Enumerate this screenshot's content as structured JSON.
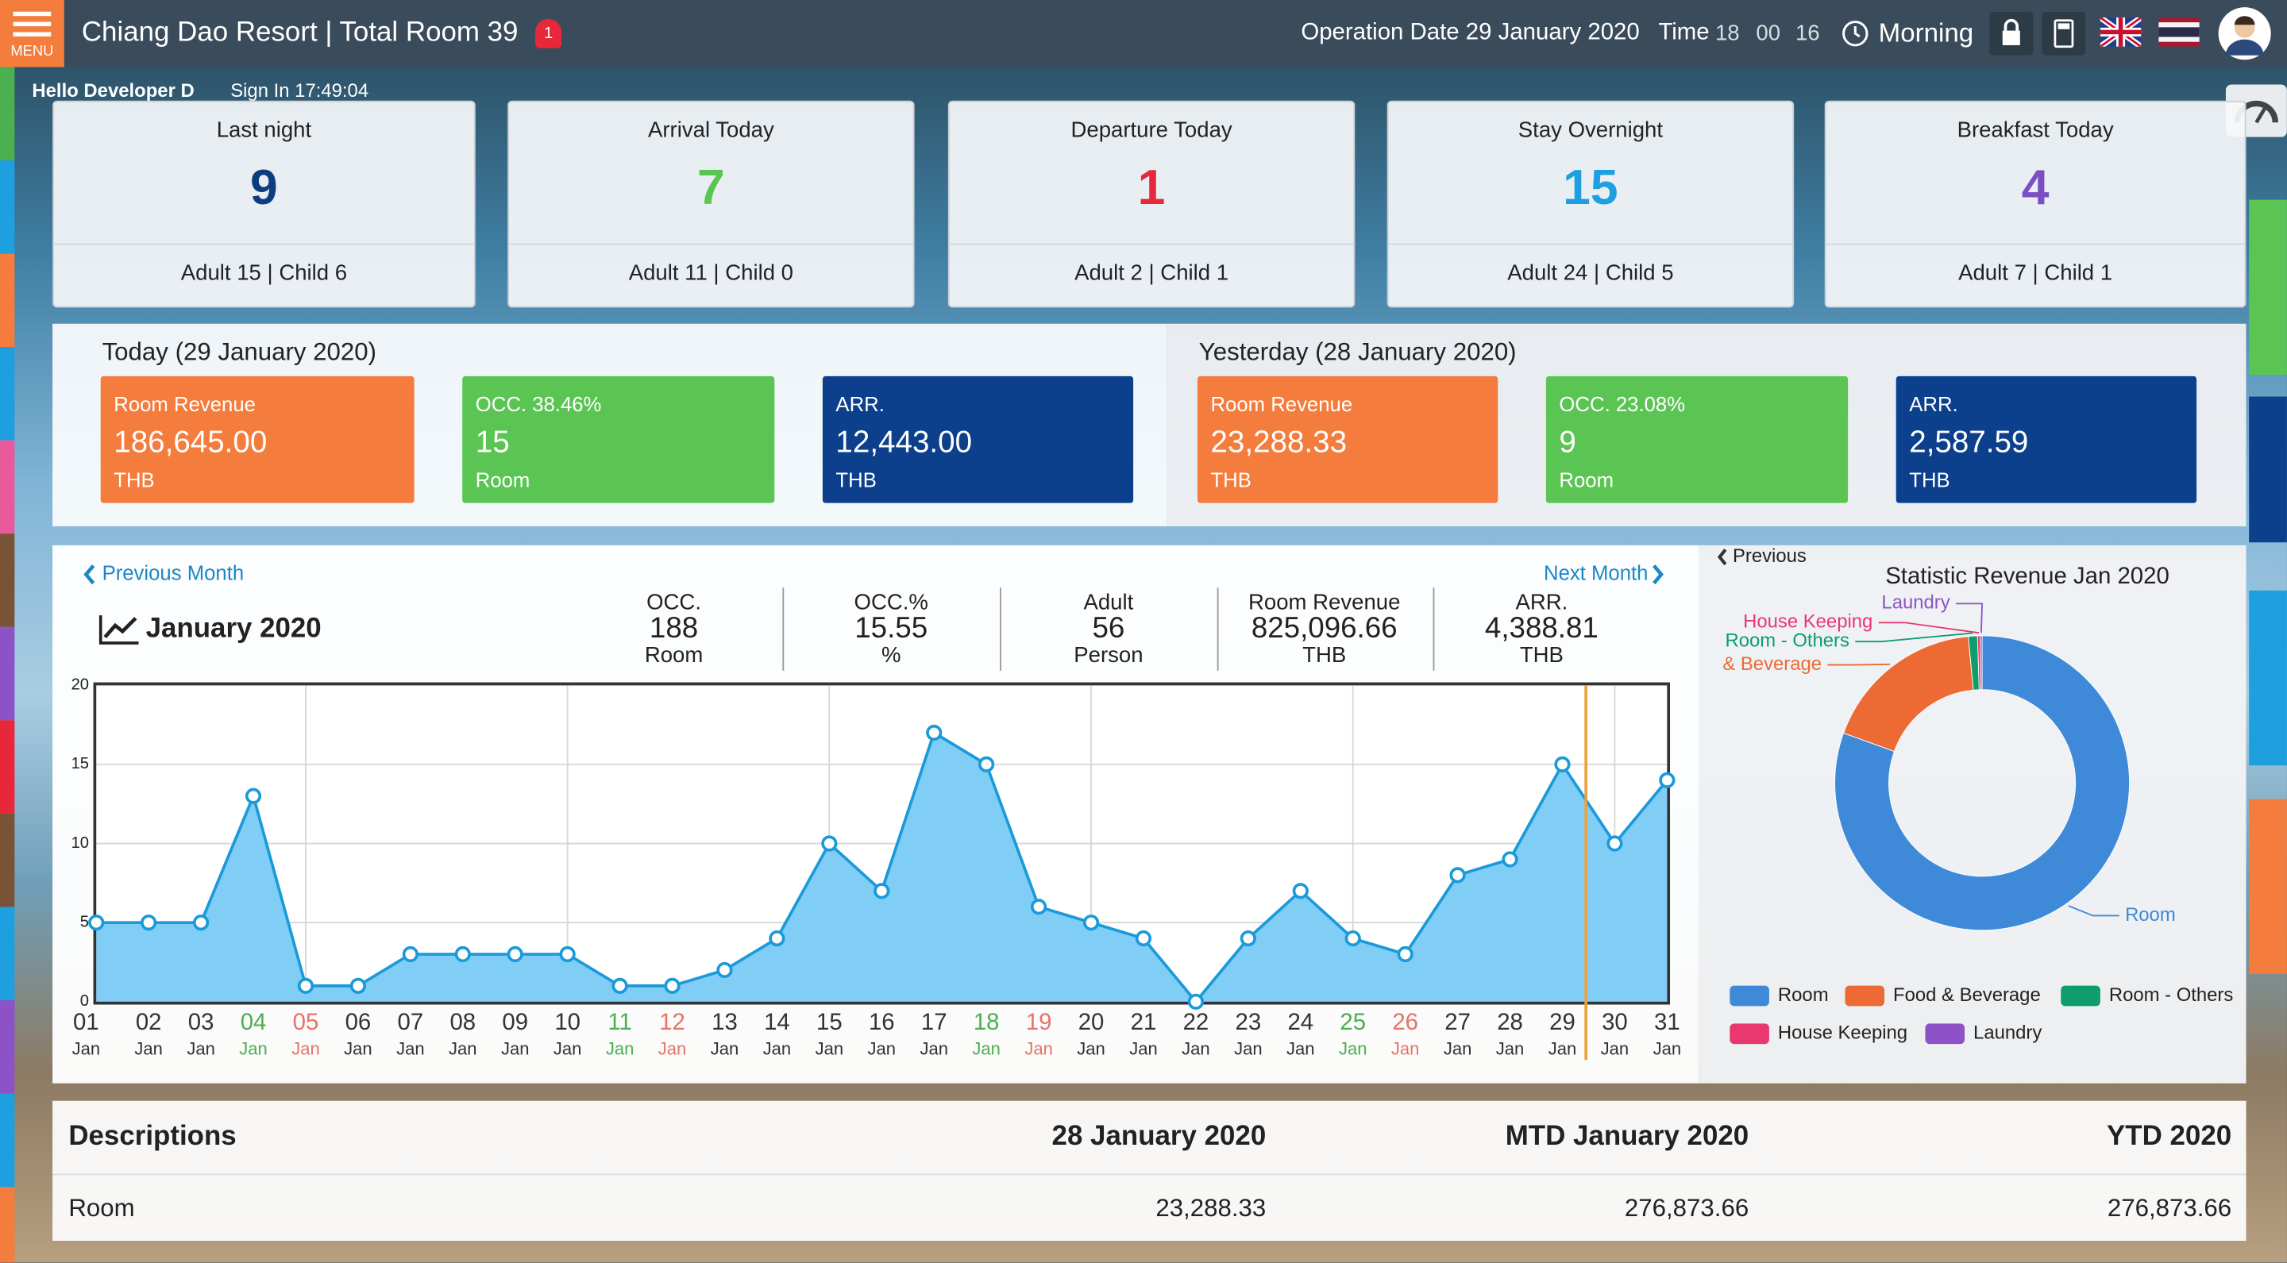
{
  "header": {
    "menu": "MENU",
    "title": "Chiang Dao Resort | Total Room 39",
    "badge": "1",
    "operation_date": "Operation Date 29 January 2020",
    "time_label": "Time",
    "time": [
      "18",
      "00",
      "16"
    ],
    "shift": "Morning"
  },
  "user": {
    "greeting": "Hello Developer D",
    "sign_in": "Sign In 17:49:04"
  },
  "cards": [
    {
      "title": "Last night",
      "value": 9,
      "detail": "Adult 15 | Child 6",
      "color": "#0d3c80"
    },
    {
      "title": "Arrival Today",
      "value": 7,
      "detail": "Adult 11 | Child 0",
      "color": "#5bc553"
    },
    {
      "title": "Departure Today",
      "value": 1,
      "detail": "Adult 2 | Child 1",
      "color": "#e8283a"
    },
    {
      "title": "Stay Overnight",
      "value": 15,
      "detail": "Adult 24 | Child 5",
      "color": "#1d9fe0"
    },
    {
      "title": "Breakfast Today",
      "value": 4,
      "detail": "Adult 7 | Child 1",
      "color": "#7b4fc4"
    }
  ],
  "revenue_panels": [
    {
      "title": "Today (29 January 2020)",
      "boxes": [
        {
          "label": "Room Revenue",
          "value": "186,645.00",
          "unit": "THB",
          "color": "#f47c3c"
        },
        {
          "label": "OCC. 38.46%",
          "value": 15,
          "unit": "Room",
          "color": "#5bc553"
        },
        {
          "label": "ARR.",
          "value": "12,443.00",
          "unit": "THB",
          "color": "#0c3f8c"
        }
      ]
    },
    {
      "title": "Yesterday (28 January 2020)",
      "boxes": [
        {
          "label": "Room Revenue",
          "value": "23,288.33",
          "unit": "THB",
          "color": "#f47c3c"
        },
        {
          "label": "OCC. 23.08%",
          "value": 9,
          "unit": "Room",
          "color": "#5bc553"
        },
        {
          "label": "ARR.",
          "value": "2,587.59",
          "unit": "THB",
          "color": "#0c3f8c"
        }
      ]
    }
  ],
  "month": {
    "prev": "Previous Month",
    "next": "Next Month",
    "title": "January 2020",
    "stats": [
      {
        "label": "OCC.",
        "value": 188,
        "unit": "Room"
      },
      {
        "label": "OCC.%",
        "value": 15.55,
        "unit": "%"
      },
      {
        "label": "Adult",
        "value": 56,
        "unit": "Person"
      },
      {
        "label": "Room Revenue",
        "value": "825,096.66",
        "unit": "THB"
      },
      {
        "label": "ARR.",
        "value": "4,388.81",
        "unit": "THB"
      }
    ]
  },
  "chart_data": [
    {
      "type": "area",
      "categories": [
        "01",
        "02",
        "03",
        "04",
        "05",
        "06",
        "07",
        "08",
        "09",
        "10",
        "11",
        "12",
        "13",
        "14",
        "15",
        "16",
        "17",
        "18",
        "19",
        "20",
        "21",
        "22",
        "23",
        "24",
        "25",
        "26",
        "27",
        "28",
        "29",
        "30",
        "31"
      ],
      "category_sublabel": "Jan",
      "category_colors": [
        "#333333",
        "#333333",
        "#333333",
        "#4caf50",
        "#e57368",
        "#333333",
        "#333333",
        "#333333",
        "#333333",
        "#333333",
        "#4caf50",
        "#e57368",
        "#333333",
        "#333333",
        "#333333",
        "#333333",
        "#333333",
        "#4caf50",
        "#e57368",
        "#333333",
        "#333333",
        "#333333",
        "#333333",
        "#333333",
        "#4caf50",
        "#e57368",
        "#333333",
        "#333333",
        "#333333",
        "#333333",
        "#333333"
      ],
      "values": [
        5,
        5,
        5,
        13,
        1,
        1,
        3,
        3,
        3,
        3,
        1,
        1,
        2,
        4,
        10,
        7,
        17,
        15,
        6,
        5,
        4,
        0,
        4,
        7,
        4,
        3,
        8,
        9,
        15,
        10,
        14
      ],
      "color": "#1a9ad9",
      "fill": "#80cdf5",
      "ylim": [
        0,
        20
      ],
      "yticks": [
        0,
        5,
        10,
        15,
        20
      ],
      "grid": true,
      "x_grid_step": 5,
      "current_marker": {
        "x": 29.45,
        "color": "#e8a33d"
      }
    },
    {
      "type": "pie",
      "donut": true,
      "title": "Statistic Revenue Jan 2020",
      "previous": "Previous",
      "categories": [
        "Room",
        "Food & Beverage",
        "Room - Others",
        "House Keeping",
        "Laundry"
      ],
      "values": [
        80.5,
        18,
        1,
        0.3,
        0.2
      ],
      "colors": [
        "#3f8ad8",
        "#ee6a35",
        "#0e9d6b",
        "#e8386f",
        "#8e52c7"
      ],
      "legend": "bottom"
    }
  ],
  "table": {
    "headers": [
      "Descriptions",
      "28 January 2020",
      "MTD January 2020",
      "YTD 2020"
    ],
    "rows": [
      [
        "Room",
        "23,288.33",
        "276,873.66",
        "276,873.66"
      ]
    ]
  }
}
